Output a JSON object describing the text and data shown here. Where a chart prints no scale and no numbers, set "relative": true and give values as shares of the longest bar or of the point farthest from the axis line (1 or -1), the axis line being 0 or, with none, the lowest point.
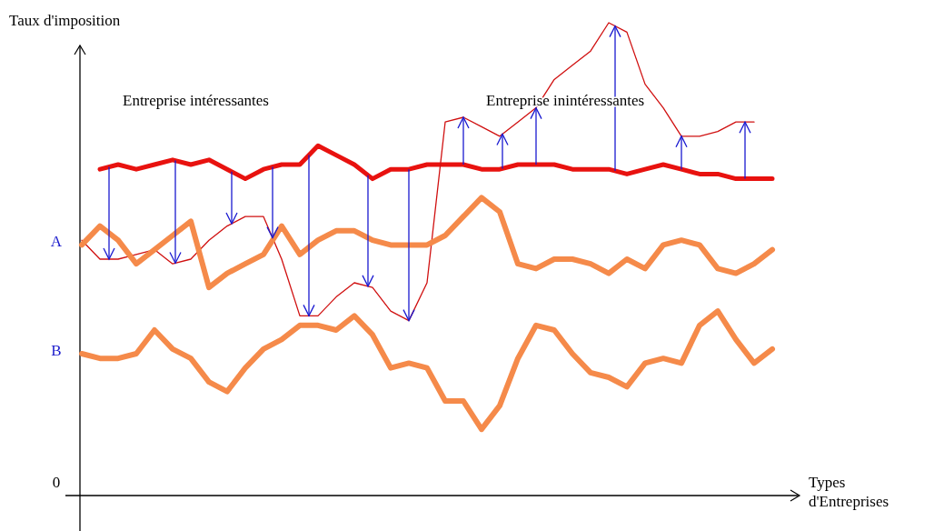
{
  "chart_data": {
    "type": "line",
    "relative": true,
    "ylabel": "Taux d'imposition",
    "xlabel": "Types d'Entreprises",
    "categories": [
      null,
      null,
      null,
      null,
      null,
      null,
      null,
      null,
      null,
      null,
      null,
      null,
      null,
      null,
      null,
      null,
      null,
      null,
      null,
      null,
      null,
      null,
      null,
      null,
      null,
      null,
      null,
      null,
      null,
      null,
      null,
      null,
      null,
      null,
      null,
      null,
      null,
      null,
      null
    ],
    "annotations": [
      "Entreprise intéressantes",
      "Entreprise inintéressantes",
      "A",
      "B",
      "0"
    ],
    "series": [
      {
        "color": "#e8120f",
        "values": [
          null,
          0.69,
          0.7,
          0.69,
          0.7,
          0.71,
          0.7,
          0.71,
          0.69,
          0.67,
          0.69,
          0.7,
          0.7,
          0.74,
          0.72,
          0.7,
          0.67,
          0.69,
          0.69,
          0.7,
          0.7,
          0.7,
          0.69,
          0.69,
          0.7,
          0.7,
          0.7,
          0.69,
          0.69,
          0.69,
          0.68,
          0.69,
          0.7,
          0.69,
          0.68,
          0.68,
          0.67,
          0.67,
          0.67
        ]
      },
      {
        "color": "#d01010",
        "values": [
          0.54,
          0.5,
          0.5,
          0.51,
          0.52,
          0.49,
          0.5,
          0.54,
          0.57,
          0.59,
          0.59,
          0.5,
          0.38,
          0.38,
          0.42,
          0.45,
          0.44,
          0.39,
          0.37,
          0.45,
          0.79,
          0.8,
          0.78,
          0.76,
          0.79,
          0.82,
          0.88,
          0.91,
          0.94,
          1,
          0.98,
          0.87,
          0.82,
          0.76,
          0.76,
          0.77,
          0.79,
          0.79,
          null
        ]
      },
      {
        "color": "#f58a4a",
        "values": [
          0.53,
          0.57,
          0.54,
          0.49,
          0.52,
          0.55,
          0.58,
          0.44,
          0.47,
          0.49,
          0.51,
          0.57,
          0.51,
          0.54,
          0.56,
          0.56,
          0.54,
          0.53,
          0.53,
          0.53,
          0.55,
          0.59,
          0.63,
          0.6,
          0.49,
          0.48,
          0.5,
          0.5,
          0.49,
          0.47,
          0.5,
          0.48,
          0.53,
          0.54,
          0.53,
          0.48,
          0.47,
          0.49,
          0.52
        ]
      },
      {
        "color": "#f58a4a",
        "values": [
          0.3,
          0.29,
          0.29,
          0.3,
          0.35,
          0.31,
          0.29,
          0.24,
          0.22,
          0.27,
          0.31,
          0.33,
          0.36,
          0.36,
          0.35,
          0.38,
          0.34,
          0.27,
          0.28,
          0.27,
          0.2,
          0.2,
          0.14,
          0.19,
          0.29,
          0.36,
          0.35,
          0.3,
          0.26,
          0.25,
          0.23,
          0.28,
          0.29,
          0.28,
          0.36,
          0.39,
          0.33,
          0.28,
          0.31
        ]
      }
    ]
  }
}
